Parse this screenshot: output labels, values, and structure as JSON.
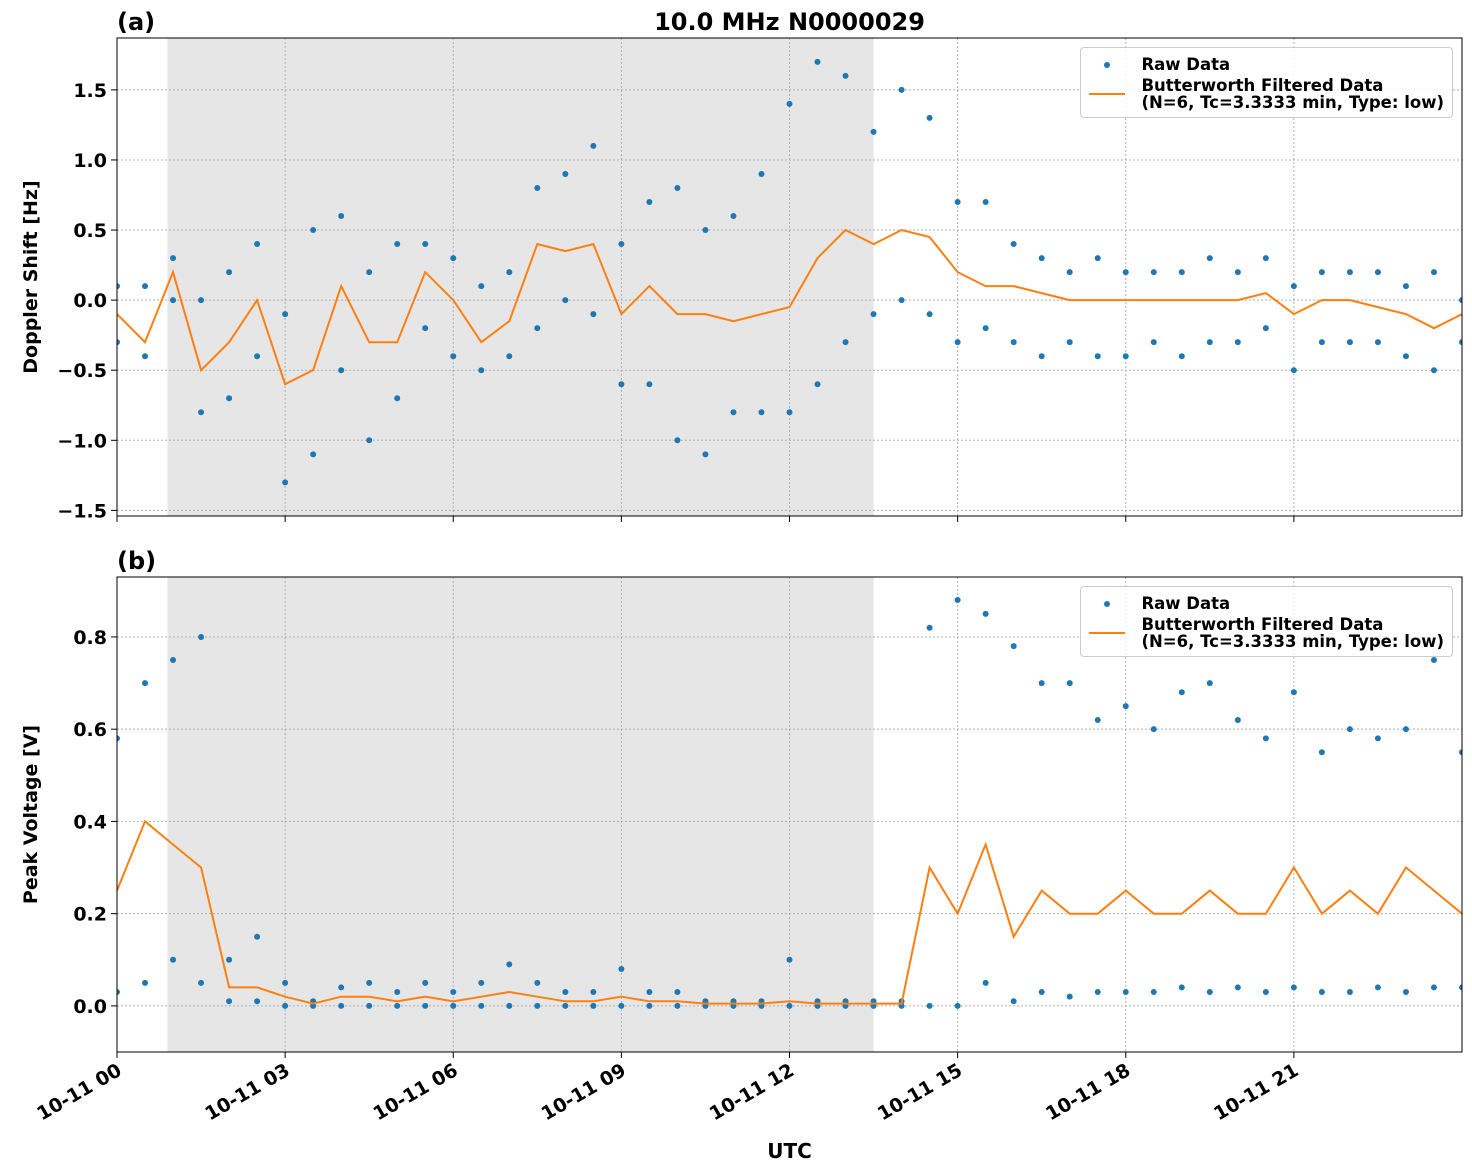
{
  "chart_data": [
    {
      "type": "line",
      "title": "10.0 MHz N0000029",
      "panel_label": "(a)",
      "y_label": "Doppler Shift [Hz]",
      "xlim": [
        0,
        24
      ],
      "xticks": [
        0,
        3,
        6,
        9,
        12,
        15,
        18,
        21
      ],
      "ylim": [
        -1.54,
        1.87
      ],
      "yticks": [
        {
          "value": -1.5,
          "label": "−1.5"
        },
        {
          "value": -1.0,
          "label": "−1.0"
        },
        {
          "value": -0.5,
          "label": "−0.5"
        },
        {
          "value": 0,
          "label": "0.0"
        },
        0.5,
        {
          "value": 1.0,
          "label": "1.0"
        },
        1.5
      ],
      "grid": true,
      "legend": "upper right",
      "shaded_span": [
        0.9,
        13.5
      ],
      "series": [
        {
          "name": "Raw Data",
          "type": "scatter",
          "color": "#1f77b4",
          "x": [
            0,
            0.5,
            1,
            1.5,
            2,
            2.5,
            3,
            3.5,
            4,
            4.5,
            5,
            5.5,
            6,
            6.5,
            7,
            7.5,
            8,
            8.5,
            9,
            9.5,
            10,
            10.5,
            11,
            11.5,
            12,
            12.5,
            13,
            13.5,
            14,
            14.5,
            15,
            15.5,
            16,
            16.5,
            17,
            17.5,
            18,
            18.5,
            19,
            19.5,
            20,
            20.5,
            21,
            21.5,
            22,
            22.5,
            23,
            23.5,
            24,
            0,
            0.5,
            1,
            1.5,
            2,
            2.5,
            3,
            3.5,
            4,
            4.5,
            5,
            5.5,
            6,
            6.5,
            7,
            7.5,
            8,
            8.5,
            9,
            9.5,
            10,
            10.5,
            11,
            11.5,
            12,
            12.5,
            13,
            13.5,
            14,
            14.5,
            15,
            15.5,
            16,
            16.5,
            17,
            17.5,
            18,
            18.5,
            19,
            19.5,
            20,
            20.5,
            21,
            21.5,
            22,
            22.5,
            23,
            23.5,
            24
          ],
          "values": [
            0.1,
            0.1,
            0.3,
            0.0,
            0.2,
            0.4,
            -0.1,
            0.5,
            0.6,
            0.2,
            0.4,
            0.4,
            0.3,
            0.1,
            0.2,
            0.8,
            0.9,
            1.1,
            0.4,
            0.7,
            0.8,
            0.5,
            0.6,
            0.9,
            1.4,
            1.7,
            1.6,
            1.2,
            1.5,
            1.3,
            0.7,
            0.7,
            0.4,
            0.3,
            0.2,
            0.3,
            0.2,
            0.2,
            0.2,
            0.3,
            0.2,
            0.3,
            0.1,
            0.2,
            0.2,
            0.2,
            0.1,
            0.2,
            0.0,
            -0.3,
            -0.4,
            0.0,
            -0.8,
            -0.7,
            -0.4,
            -1.3,
            -1.1,
            -0.5,
            -1.0,
            -0.7,
            -0.2,
            -0.4,
            -0.5,
            -0.4,
            -0.2,
            0.0,
            -0.1,
            -0.6,
            -0.6,
            -1.0,
            -1.1,
            -0.8,
            -0.8,
            -0.8,
            -0.6,
            -0.3,
            -0.1,
            0.0,
            -0.1,
            -0.3,
            -0.2,
            -0.3,
            -0.4,
            -0.3,
            -0.4,
            -0.4,
            -0.3,
            -0.4,
            -0.3,
            -0.3,
            -0.2,
            -0.5,
            -0.3,
            -0.3,
            -0.3,
            -0.4,
            -0.5,
            -0.3
          ]
        },
        {
          "name": "Butterworth Filtered Data\n(N=6, Tc=3.3333 min, Type: low)",
          "type": "line",
          "color": "#ff7f0e",
          "x": [
            0,
            0.5,
            1,
            1.5,
            2,
            2.5,
            3,
            3.5,
            4,
            4.5,
            5,
            5.5,
            6,
            6.5,
            7,
            7.5,
            8,
            8.5,
            9,
            9.5,
            10,
            10.5,
            11,
            11.5,
            12,
            12.5,
            13,
            13.5,
            14,
            14.5,
            15,
            15.5,
            16,
            16.5,
            17,
            17.5,
            18,
            18.5,
            19,
            19.5,
            20,
            20.5,
            21,
            21.5,
            22,
            22.5,
            23,
            23.5,
            24
          ],
          "values": [
            -0.1,
            -0.3,
            0.2,
            -0.5,
            -0.3,
            0.0,
            -0.6,
            -0.5,
            0.1,
            -0.3,
            -0.3,
            0.2,
            0.0,
            -0.3,
            -0.15,
            0.4,
            0.35,
            0.4,
            -0.1,
            0.1,
            -0.1,
            -0.1,
            -0.15,
            -0.1,
            -0.05,
            0.3,
            0.5,
            0.4,
            0.5,
            0.45,
            0.2,
            0.1,
            0.1,
            0.05,
            0,
            0,
            0,
            0,
            0,
            0,
            0,
            0.05,
            -0.1,
            0,
            0,
            -0.05,
            -0.1,
            -0.2,
            -0.1
          ]
        }
      ]
    },
    {
      "type": "line",
      "panel_label": "(b)",
      "y_label": "Peak Voltage [V]",
      "x_label": "UTC",
      "xlim": [
        0,
        24
      ],
      "xticks": [
        {
          "value": 0,
          "label": "10-11 00"
        },
        {
          "value": 3,
          "label": "10-11 03"
        },
        {
          "value": 6,
          "label": "10-11 06"
        },
        {
          "value": 9,
          "label": "10-11 09"
        },
        {
          "value": 12,
          "label": "10-11 12"
        },
        {
          "value": 15,
          "label": "10-11 15"
        },
        {
          "value": 18,
          "label": "10-11 18"
        },
        {
          "value": 21,
          "label": "10-11 21"
        }
      ],
      "ylim": [
        -0.1,
        0.93
      ],
      "yticks": [
        {
          "value": 0,
          "label": "0.0"
        },
        0.2,
        0.4,
        0.6,
        0.8
      ],
      "grid": true,
      "legend": "upper right",
      "shaded_span": [
        0.9,
        13.5
      ],
      "series": [
        {
          "name": "Raw Data",
          "type": "scatter",
          "color": "#1f77b4",
          "x": [
            0,
            0.5,
            1,
            1.5,
            2,
            2.5,
            3,
            3.5,
            4,
            4.5,
            5,
            5.5,
            6,
            6.5,
            7,
            7.5,
            8,
            8.5,
            9,
            9.5,
            10,
            10.5,
            11,
            11.5,
            12,
            12.5,
            13,
            13.5,
            14,
            14.5,
            15,
            15.5,
            16,
            16.5,
            17,
            17.5,
            18,
            18.5,
            19,
            19.5,
            20,
            20.5,
            21,
            21.5,
            22,
            22.5,
            23,
            23.5,
            24,
            0,
            0.5,
            1,
            1.5,
            2,
            2.5,
            3,
            3.5,
            4,
            4.5,
            5,
            5.5,
            6,
            6.5,
            7,
            7.5,
            8,
            8.5,
            9,
            9.5,
            10,
            10.5,
            11,
            11.5,
            12,
            12.5,
            13,
            13.5,
            14,
            14.5,
            15,
            15.5,
            16,
            16.5,
            17,
            17.5,
            18,
            18.5,
            19,
            19.5,
            20,
            20.5,
            21,
            21.5,
            22,
            22.5,
            23,
            23.5,
            24
          ],
          "values": [
            0.58,
            0.7,
            0.75,
            0.8,
            0.1,
            0.15,
            0.05,
            0.01,
            0.04,
            0.05,
            0.03,
            0.05,
            0.03,
            0.05,
            0.09,
            0.05,
            0.03,
            0.03,
            0.08,
            0.03,
            0.03,
            0.01,
            0.01,
            0.01,
            0.1,
            0.01,
            0.01,
            0.01,
            0.01,
            0.82,
            0.88,
            0.85,
            0.78,
            0.7,
            0.7,
            0.62,
            0.65,
            0.6,
            0.68,
            0.7,
            0.62,
            0.58,
            0.68,
            0.55,
            0.6,
            0.58,
            0.6,
            0.75,
            0.55,
            0.03,
            0.05,
            0.1,
            0.05,
            0.01,
            0.01,
            0,
            0,
            0,
            0,
            0,
            0,
            0,
            0,
            0,
            0,
            0,
            0,
            0,
            0,
            0,
            0,
            0,
            0,
            0,
            0,
            0,
            0,
            0,
            0,
            0,
            0.05,
            0.01,
            0.03,
            0.02,
            0.03,
            0.03,
            0.03,
            0.04,
            0.03,
            0.04,
            0.03,
            0.04,
            0.03,
            0.03,
            0.04,
            0.03,
            0.04,
            0.04
          ]
        },
        {
          "name": "Butterworth Filtered Data\n(N=6, Tc=3.3333 min, Type: low)",
          "type": "line",
          "color": "#ff7f0e",
          "x": [
            0,
            0.5,
            1,
            1.5,
            2,
            2.5,
            3,
            3.5,
            4,
            4.5,
            5,
            5.5,
            6,
            6.5,
            7,
            7.5,
            8,
            8.5,
            9,
            9.5,
            10,
            10.5,
            11,
            11.5,
            12,
            12.5,
            13,
            13.5,
            14,
            14.5,
            15,
            15.5,
            16,
            16.5,
            17,
            17.5,
            18,
            18.5,
            19,
            19.5,
            20,
            20.5,
            21,
            21.5,
            22,
            22.5,
            23,
            23.5,
            24
          ],
          "values": [
            0.25,
            0.4,
            0.35,
            0.3,
            0.04,
            0.04,
            0.02,
            0.005,
            0.02,
            0.02,
            0.01,
            0.02,
            0.01,
            0.02,
            0.03,
            0.02,
            0.01,
            0.01,
            0.02,
            0.01,
            0.01,
            0.005,
            0.005,
            0.005,
            0.01,
            0.005,
            0.005,
            0.005,
            0.005,
            0.3,
            0.2,
            0.35,
            0.15,
            0.25,
            0.2,
            0.2,
            0.25,
            0.2,
            0.2,
            0.25,
            0.2,
            0.2,
            0.3,
            0.2,
            0.25,
            0.2,
            0.3,
            0.25,
            0.2
          ]
        }
      ]
    }
  ]
}
